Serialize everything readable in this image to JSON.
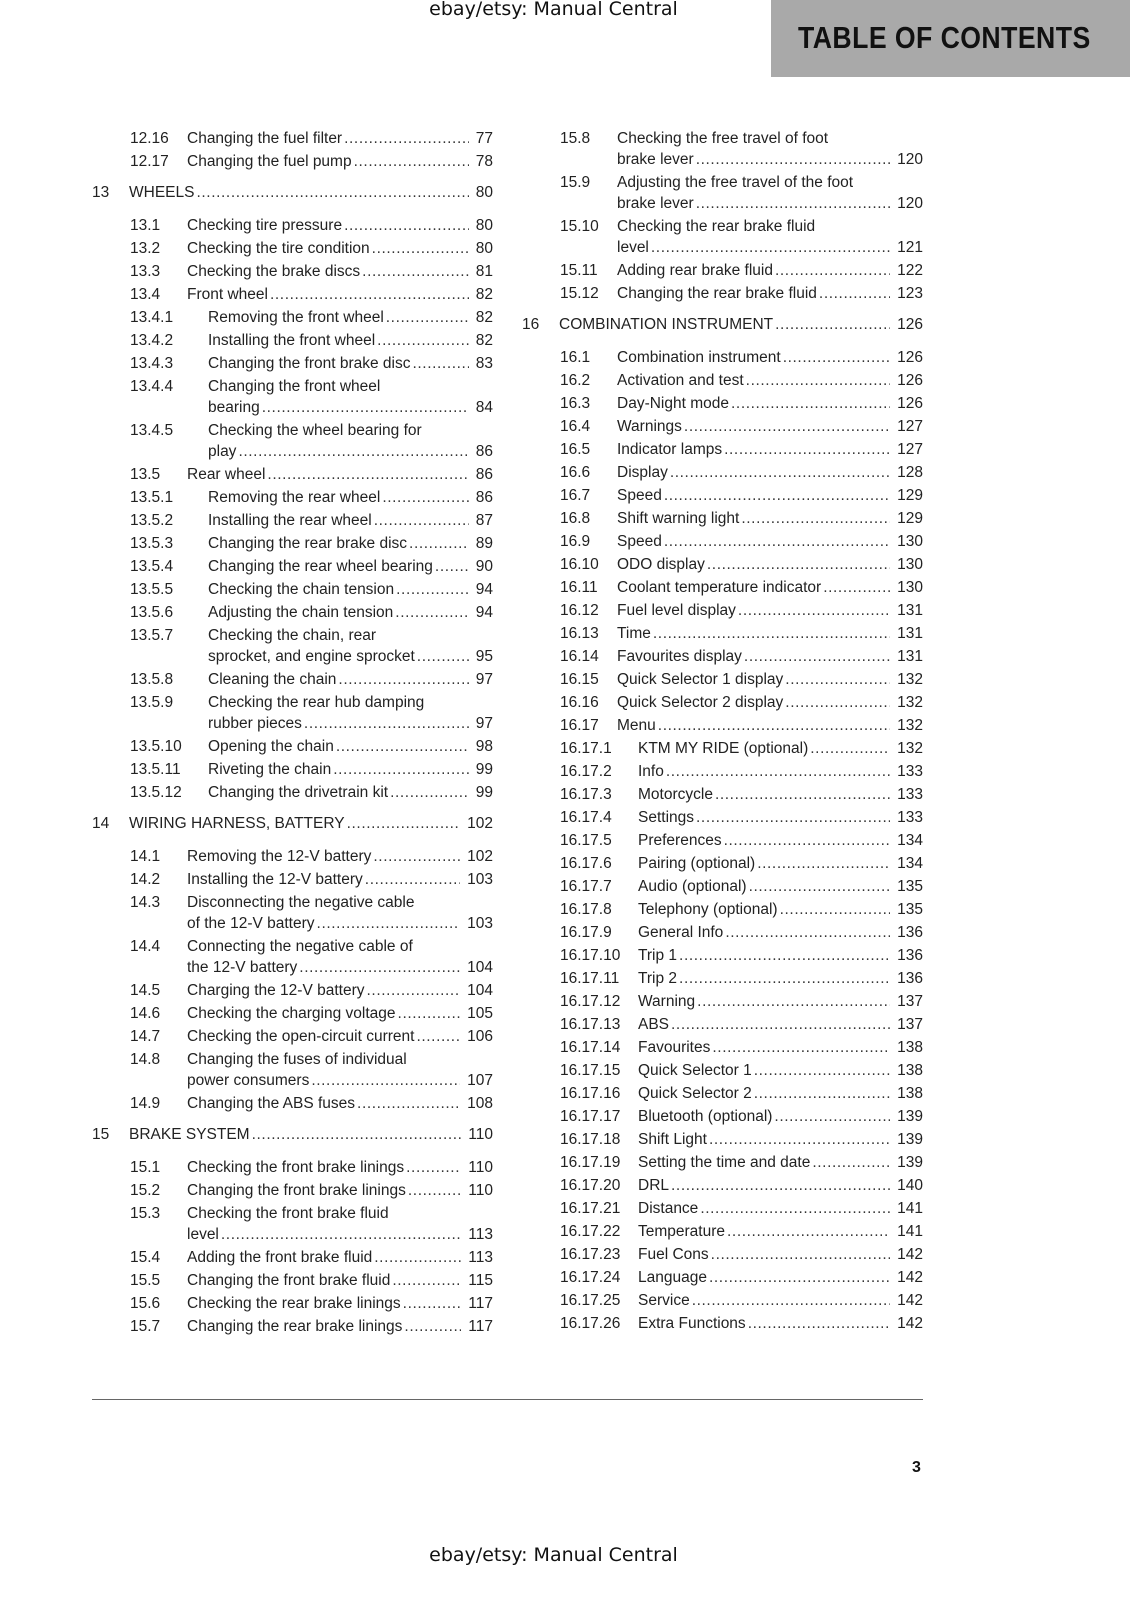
{
  "watermark_top": "ebay/etsy: Manual Central",
  "watermark_bottom": "ebay/etsy: Manual Central",
  "header": {
    "title": "TABLE OF CONTENTS",
    "background": "#a9a9a9"
  },
  "page_number": "3",
  "columns": [
    {
      "entries": [
        {
          "type": "section",
          "num": "12.16",
          "lines": [
            "Changing the fuel filter"
          ],
          "page": "77"
        },
        {
          "type": "section",
          "num": "12.17",
          "lines": [
            "Changing the fuel pump"
          ],
          "page": "78"
        },
        {
          "type": "chapter",
          "num": "13",
          "lines": [
            "WHEELS"
          ],
          "page": "80"
        },
        {
          "type": "section",
          "num": "13.1",
          "lines": [
            "Checking tire pressure"
          ],
          "page": "80"
        },
        {
          "type": "section",
          "num": "13.2",
          "lines": [
            "Checking the tire condition"
          ],
          "page": "80"
        },
        {
          "type": "section",
          "num": "13.3",
          "lines": [
            "Checking the brake discs"
          ],
          "page": "81"
        },
        {
          "type": "section",
          "num": "13.4",
          "lines": [
            "Front wheel"
          ],
          "page": "82"
        },
        {
          "type": "sub",
          "num": "13.4.1",
          "lines": [
            "Removing the front wheel"
          ],
          "page": "82"
        },
        {
          "type": "sub",
          "num": "13.4.2",
          "lines": [
            "Installing the front wheel"
          ],
          "page": "82"
        },
        {
          "type": "sub",
          "num": "13.4.3",
          "lines": [
            "Changing the front brake disc"
          ],
          "page": "83"
        },
        {
          "type": "sub",
          "num": "13.4.4",
          "lines": [
            "Changing the front wheel",
            "bearing"
          ],
          "page": "84"
        },
        {
          "type": "sub",
          "num": "13.4.5",
          "lines": [
            "Checking the wheel bearing for",
            "play"
          ],
          "page": "86"
        },
        {
          "type": "section",
          "num": "13.5",
          "lines": [
            "Rear wheel"
          ],
          "page": "86"
        },
        {
          "type": "sub",
          "num": "13.5.1",
          "lines": [
            "Removing the rear wheel"
          ],
          "page": "86"
        },
        {
          "type": "sub",
          "num": "13.5.2",
          "lines": [
            "Installing the rear wheel"
          ],
          "page": "87"
        },
        {
          "type": "sub",
          "num": "13.5.3",
          "lines": [
            "Changing the rear brake disc"
          ],
          "page": "89"
        },
        {
          "type": "sub",
          "num": "13.5.4",
          "lines": [
            "Changing the rear wheel bearing"
          ],
          "page": "90"
        },
        {
          "type": "sub",
          "num": "13.5.5",
          "lines": [
            "Checking the chain tension"
          ],
          "page": "94"
        },
        {
          "type": "sub",
          "num": "13.5.6",
          "lines": [
            "Adjusting the chain tension"
          ],
          "page": "94"
        },
        {
          "type": "sub",
          "num": "13.5.7",
          "lines": [
            "Checking the chain, rear",
            "sprocket, and engine sprocket"
          ],
          "page": "95"
        },
        {
          "type": "sub",
          "num": "13.5.8",
          "lines": [
            "Cleaning the chain"
          ],
          "page": "97"
        },
        {
          "type": "sub",
          "num": "13.5.9",
          "lines": [
            "Checking the rear hub damping",
            "rubber pieces"
          ],
          "page": "97"
        },
        {
          "type": "sub",
          "num": "13.5.10",
          "lines": [
            "Opening the chain"
          ],
          "page": "98"
        },
        {
          "type": "sub",
          "num": "13.5.11",
          "lines": [
            "Riveting the chain"
          ],
          "page": "99"
        },
        {
          "type": "sub",
          "num": "13.5.12",
          "lines": [
            "Changing the drivetrain kit"
          ],
          "page": "99"
        },
        {
          "type": "chapter",
          "num": "14",
          "lines": [
            "WIRING HARNESS, BATTERY"
          ],
          "page": "102"
        },
        {
          "type": "section",
          "num": "14.1",
          "lines": [
            "Removing the 12-V battery"
          ],
          "page": "102"
        },
        {
          "type": "section",
          "num": "14.2",
          "lines": [
            "Installing the 12-V battery"
          ],
          "page": "103"
        },
        {
          "type": "section",
          "num": "14.3",
          "lines": [
            "Disconnecting the negative cable",
            "of the 12-V battery"
          ],
          "page": "103"
        },
        {
          "type": "section",
          "num": "14.4",
          "lines": [
            "Connecting the negative cable of",
            "the 12-V battery"
          ],
          "page": "104"
        },
        {
          "type": "section",
          "num": "14.5",
          "lines": [
            "Charging the 12-V battery"
          ],
          "page": "104"
        },
        {
          "type": "section",
          "num": "14.6",
          "lines": [
            "Checking the charging voltage"
          ],
          "page": "105"
        },
        {
          "type": "section",
          "num": "14.7",
          "lines": [
            "Checking the open-circuit current"
          ],
          "page": "106"
        },
        {
          "type": "section",
          "num": "14.8",
          "lines": [
            "Changing the fuses of individual",
            "power consumers"
          ],
          "page": "107"
        },
        {
          "type": "section",
          "num": "14.9",
          "lines": [
            "Changing the ABS fuses"
          ],
          "page": "108"
        },
        {
          "type": "chapter",
          "num": "15",
          "lines": [
            "BRAKE SYSTEM"
          ],
          "page": "110"
        },
        {
          "type": "section",
          "num": "15.1",
          "lines": [
            "Checking the front brake linings"
          ],
          "page": "110"
        },
        {
          "type": "section",
          "num": "15.2",
          "lines": [
            "Changing the front brake linings"
          ],
          "page": "110"
        },
        {
          "type": "section",
          "num": "15.3",
          "lines": [
            "Checking the front brake fluid",
            "level"
          ],
          "page": "113"
        },
        {
          "type": "section",
          "num": "15.4",
          "lines": [
            "Adding the front brake fluid"
          ],
          "page": "113"
        },
        {
          "type": "section",
          "num": "15.5",
          "lines": [
            "Changing the front brake fluid"
          ],
          "page": "115"
        },
        {
          "type": "section",
          "num": "15.6",
          "lines": [
            "Checking the rear brake linings"
          ],
          "page": "117"
        },
        {
          "type": "section",
          "num": "15.7",
          "lines": [
            "Changing the rear brake linings"
          ],
          "page": "117"
        }
      ]
    },
    {
      "entries": [
        {
          "type": "section",
          "num": "15.8",
          "lines": [
            "Checking the free travel of foot",
            "brake lever"
          ],
          "page": "120"
        },
        {
          "type": "section",
          "num": "15.9",
          "lines": [
            "Adjusting the free travel of the foot",
            "brake lever"
          ],
          "page": "120"
        },
        {
          "type": "section",
          "num": "15.10",
          "lines": [
            "Checking the rear brake fluid",
            "level"
          ],
          "page": "121"
        },
        {
          "type": "section",
          "num": "15.11",
          "lines": [
            "Adding rear brake fluid"
          ],
          "page": "122"
        },
        {
          "type": "section",
          "num": "15.12",
          "lines": [
            "Changing the rear brake fluid"
          ],
          "page": "123"
        },
        {
          "type": "chapter",
          "num": "16",
          "lines": [
            "COMBINATION INSTRUMENT"
          ],
          "page": "126"
        },
        {
          "type": "section",
          "num": "16.1",
          "lines": [
            "Combination instrument"
          ],
          "page": "126"
        },
        {
          "type": "section",
          "num": "16.2",
          "lines": [
            "Activation and test"
          ],
          "page": "126"
        },
        {
          "type": "section",
          "num": "16.3",
          "lines": [
            "Day-Night mode"
          ],
          "page": "126"
        },
        {
          "type": "section",
          "num": "16.4",
          "lines": [
            "Warnings"
          ],
          "page": "127"
        },
        {
          "type": "section",
          "num": "16.5",
          "lines": [
            "Indicator lamps"
          ],
          "page": "127"
        },
        {
          "type": "section",
          "num": "16.6",
          "lines": [
            "Display"
          ],
          "page": "128"
        },
        {
          "type": "section",
          "num": "16.7",
          "lines": [
            "Speed"
          ],
          "page": "129"
        },
        {
          "type": "section",
          "num": "16.8",
          "lines": [
            "Shift warning light"
          ],
          "page": "129"
        },
        {
          "type": "section",
          "num": "16.9",
          "lines": [
            "Speed"
          ],
          "page": "130"
        },
        {
          "type": "section",
          "num": "16.10",
          "lines": [
            "ODO display"
          ],
          "page": "130"
        },
        {
          "type": "section",
          "num": "16.11",
          "lines": [
            "Coolant temperature indicator"
          ],
          "page": "130"
        },
        {
          "type": "section",
          "num": "16.12",
          "lines": [
            "Fuel level display"
          ],
          "page": "131"
        },
        {
          "type": "section",
          "num": "16.13",
          "lines": [
            "Time"
          ],
          "page": "131"
        },
        {
          "type": "section",
          "num": "16.14",
          "lines": [
            "Favourites display"
          ],
          "page": "131"
        },
        {
          "type": "section",
          "num": "16.15",
          "lines": [
            "Quick Selector 1 display"
          ],
          "page": "132"
        },
        {
          "type": "section",
          "num": "16.16",
          "lines": [
            "Quick Selector 2 display"
          ],
          "page": "132"
        },
        {
          "type": "section",
          "num": "16.17",
          "lines": [
            "Menu"
          ],
          "page": "132"
        },
        {
          "type": "sub",
          "num": "16.17.1",
          "lines": [
            "KTM MY RIDE (optional)"
          ],
          "page": "132"
        },
        {
          "type": "sub",
          "num": "16.17.2",
          "lines": [
            "Info"
          ],
          "page": "133"
        },
        {
          "type": "sub",
          "num": "16.17.3",
          "lines": [
            "Motorcycle"
          ],
          "page": "133"
        },
        {
          "type": "sub",
          "num": "16.17.4",
          "lines": [
            "Settings"
          ],
          "page": "133"
        },
        {
          "type": "sub",
          "num": "16.17.5",
          "lines": [
            "Preferences"
          ],
          "page": "134"
        },
        {
          "type": "sub",
          "num": "16.17.6",
          "lines": [
            "Pairing (optional)"
          ],
          "page": "134"
        },
        {
          "type": "sub",
          "num": "16.17.7",
          "lines": [
            "Audio (optional)"
          ],
          "page": "135"
        },
        {
          "type": "sub",
          "num": "16.17.8",
          "lines": [
            "Telephony (optional)"
          ],
          "page": "135"
        },
        {
          "type": "sub",
          "num": "16.17.9",
          "lines": [
            "General Info"
          ],
          "page": "136"
        },
        {
          "type": "sub",
          "num": "16.17.10",
          "lines": [
            "Trip 1"
          ],
          "page": "136"
        },
        {
          "type": "sub",
          "num": "16.17.11",
          "lines": [
            "Trip 2"
          ],
          "page": "136"
        },
        {
          "type": "sub",
          "num": "16.17.12",
          "lines": [
            "Warning"
          ],
          "page": "137"
        },
        {
          "type": "sub",
          "num": "16.17.13",
          "lines": [
            "ABS"
          ],
          "page": "137"
        },
        {
          "type": "sub",
          "num": "16.17.14",
          "lines": [
            "Favourites"
          ],
          "page": "138"
        },
        {
          "type": "sub",
          "num": "16.17.15",
          "lines": [
            "Quick Selector 1"
          ],
          "page": "138"
        },
        {
          "type": "sub",
          "num": "16.17.16",
          "lines": [
            "Quick Selector 2"
          ],
          "page": "138"
        },
        {
          "type": "sub",
          "num": "16.17.17",
          "lines": [
            "Bluetooth (optional)"
          ],
          "page": "139"
        },
        {
          "type": "sub",
          "num": "16.17.18",
          "lines": [
            "Shift Light"
          ],
          "page": "139"
        },
        {
          "type": "sub",
          "num": "16.17.19",
          "lines": [
            "Setting the time and date"
          ],
          "page": "139"
        },
        {
          "type": "sub",
          "num": "16.17.20",
          "lines": [
            "DRL"
          ],
          "page": "140"
        },
        {
          "type": "sub",
          "num": "16.17.21",
          "lines": [
            "Distance"
          ],
          "page": "141"
        },
        {
          "type": "sub",
          "num": "16.17.22",
          "lines": [
            "Temperature"
          ],
          "page": "141"
        },
        {
          "type": "sub",
          "num": "16.17.23",
          "lines": [
            "Fuel Cons"
          ],
          "page": "142"
        },
        {
          "type": "sub",
          "num": "16.17.24",
          "lines": [
            "Language"
          ],
          "page": "142"
        },
        {
          "type": "sub",
          "num": "16.17.25",
          "lines": [
            "Service"
          ],
          "page": "142"
        },
        {
          "type": "sub",
          "num": "16.17.26",
          "lines": [
            "Extra Functions"
          ],
          "page": "142"
        }
      ]
    }
  ]
}
